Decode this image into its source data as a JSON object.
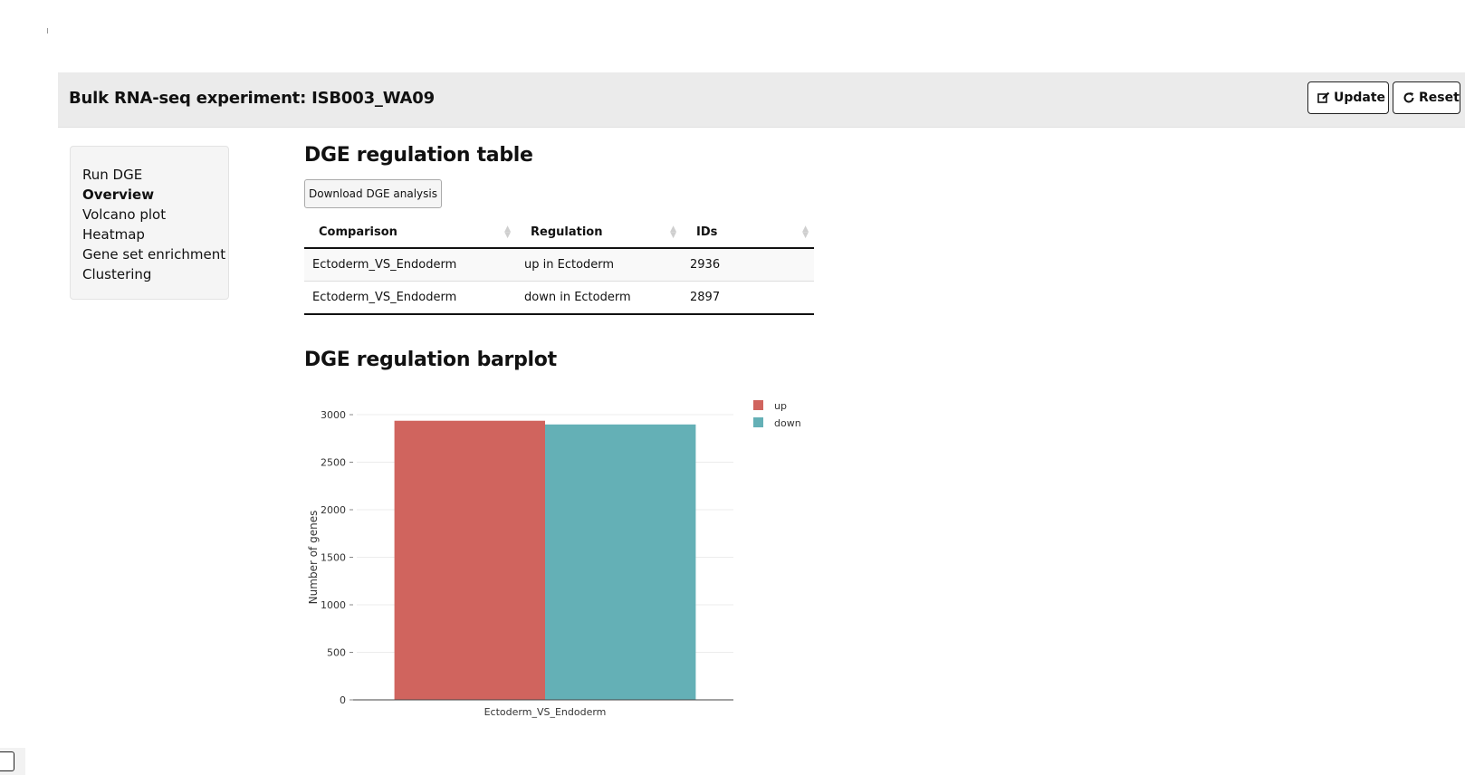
{
  "header": {
    "title": "Bulk RNA-seq experiment: ISB003_WA09",
    "update_label": "Update",
    "reset_label": "Reset"
  },
  "sidebar": {
    "items": [
      {
        "label": "Run DGE",
        "active": false
      },
      {
        "label": "Overview",
        "active": true
      },
      {
        "label": "Volcano plot",
        "active": false
      },
      {
        "label": "Heatmap",
        "active": false
      },
      {
        "label": "Gene set enrichment",
        "active": false
      },
      {
        "label": "Clustering",
        "active": false
      }
    ]
  },
  "main": {
    "table_title": "DGE regulation table",
    "download_label": "Download DGE analysis",
    "table": {
      "columns": [
        "Comparison",
        "Regulation",
        "IDs"
      ],
      "rows": [
        [
          "Ectoderm_VS_Endoderm",
          "up in Ectoderm",
          "2936"
        ],
        [
          "Ectoderm_VS_Endoderm",
          "down in Ectoderm",
          "2897"
        ]
      ]
    },
    "barplot_title": "DGE regulation barplot"
  },
  "chart_data": {
    "type": "bar",
    "categories": [
      "Ectoderm_VS_Endoderm"
    ],
    "series": [
      {
        "name": "up",
        "values": [
          2936
        ],
        "color": "#d0645e"
      },
      {
        "name": "down",
        "values": [
          2897
        ],
        "color": "#64b0b6"
      }
    ],
    "xlabel": "",
    "ylabel": "Number of genes",
    "ylim": [
      0,
      3000
    ],
    "yticks": [
      0,
      500,
      1000,
      1500,
      2000,
      2500,
      3000
    ],
    "grid": true,
    "legend_position": "top-right"
  }
}
